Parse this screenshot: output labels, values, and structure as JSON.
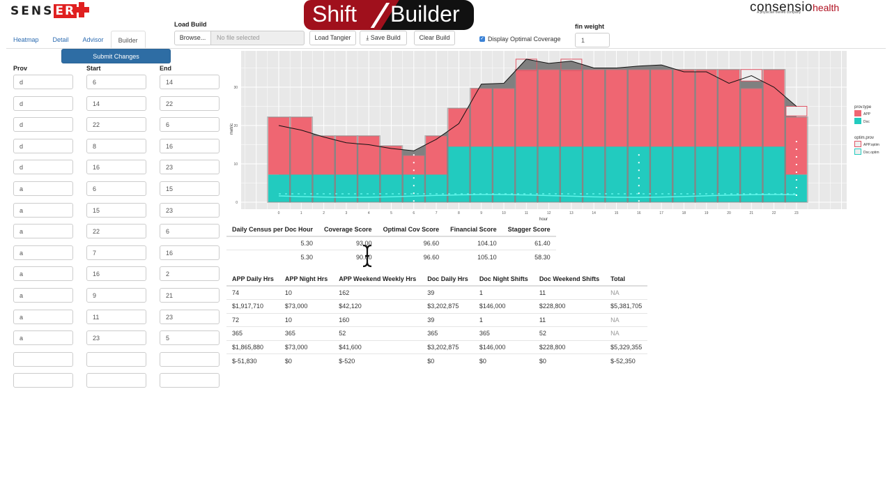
{
  "header": {
    "brand_left": {
      "prefix": "SENS",
      "highlight": "ER"
    },
    "banner": {
      "word1": "Shift",
      "word2": "Builder"
    },
    "brand_right": {
      "name": "consensio",
      "suffix": "health",
      "tagline": "A physician owned company"
    }
  },
  "tabs": [
    {
      "label": "Heatmap",
      "active": false
    },
    {
      "label": "Detail",
      "active": false
    },
    {
      "label": "Advisor",
      "active": false
    },
    {
      "label": "Builder",
      "active": true
    }
  ],
  "submit_label": "Submit Changes",
  "load_build": {
    "label": "Load Build",
    "browse_label": "Browse...",
    "file_placeholder": "No file selected",
    "load_tangier_label": "Load Tangier",
    "save_build_label": "Save Build",
    "clear_build_label": "Clear Build"
  },
  "display_optimal": {
    "label": "Display Optimal Coverage",
    "checked": true
  },
  "fin_weight": {
    "label": "fin weight",
    "value": "1"
  },
  "shifts": {
    "headers": {
      "prov": "Prov",
      "start": "Start",
      "end": "End"
    },
    "rows": [
      {
        "prov": "d",
        "start": "6",
        "end": "14"
      },
      {
        "prov": "d",
        "start": "14",
        "end": "22"
      },
      {
        "prov": "d",
        "start": "22",
        "end": "6"
      },
      {
        "prov": "d",
        "start": "8",
        "end": "16"
      },
      {
        "prov": "d",
        "start": "16",
        "end": "23"
      },
      {
        "prov": "a",
        "start": "6",
        "end": "15"
      },
      {
        "prov": "a",
        "start": "15",
        "end": "23"
      },
      {
        "prov": "a",
        "start": "22",
        "end": "6"
      },
      {
        "prov": "a",
        "start": "7",
        "end": "16"
      },
      {
        "prov": "a",
        "start": "16",
        "end": "2"
      },
      {
        "prov": "a",
        "start": "9",
        "end": "21"
      },
      {
        "prov": "a",
        "start": "11",
        "end": "23"
      },
      {
        "prov": "a",
        "start": "23",
        "end": "5"
      },
      {
        "prov": "",
        "start": "",
        "end": ""
      },
      {
        "prov": "",
        "start": "",
        "end": ""
      }
    ]
  },
  "scores": {
    "headers": [
      "Daily Census per Doc Hour",
      "Coverage Score",
      "Optimal Cov Score",
      "Financial Score",
      "Stagger Score"
    ],
    "rows": [
      [
        "5.30",
        "93.00",
        "96.60",
        "104.10",
        "61.40"
      ],
      [
        "5.30",
        "90.60",
        "96.60",
        "105.10",
        "58.30"
      ]
    ]
  },
  "costs": {
    "headers": [
      "APP Daily Hrs",
      "APP Night Hrs",
      "APP Weekend Weekly Hrs",
      "Doc Daily Hrs",
      "Doc Night Shifts",
      "Doc Weekend Shifts",
      "Total"
    ],
    "rows": [
      [
        "74",
        "10",
        "162",
        "39",
        "1",
        "11",
        "NA"
      ],
      [
        "$1,917,710",
        "$73,000",
        "$42,120",
        "$3,202,875",
        "$146,000",
        "$228,800",
        "$5,381,705"
      ],
      [
        "72",
        "10",
        "160",
        "39",
        "1",
        "11",
        "NA"
      ],
      [
        "365",
        "365",
        "52",
        "365",
        "365",
        "52",
        "NA"
      ],
      [
        "$1,865,880",
        "$73,000",
        "$41,600",
        "$3,202,875",
        "$146,000",
        "$228,800",
        "$5,329,355"
      ],
      [
        "$-51,830",
        "$0",
        "$-520",
        "$0",
        "$0",
        "$0",
        "$-52,350"
      ]
    ]
  },
  "colors": {
    "app": "#ef6672",
    "app_dark": "#e8515e",
    "doc": "#22cbbf",
    "primary": "#2e6da4",
    "panel_bg": "#e8e8e8"
  },
  "chart_data": {
    "type": "bar",
    "xlabel": "hour",
    "ylabel": "metric",
    "ylim": [
      0,
      39
    ],
    "yticks": [
      0,
      10,
      20,
      30
    ],
    "categories": [
      0,
      1,
      2,
      3,
      4,
      5,
      6,
      7,
      8,
      9,
      10,
      11,
      12,
      13,
      14,
      15,
      16,
      17,
      18,
      19,
      20,
      21,
      22,
      23
    ],
    "series": [
      {
        "name": "Doc",
        "values": [
          7.2,
          7.2,
          7.2,
          7.2,
          7.2,
          7.2,
          7.2,
          7.2,
          14.5,
          14.5,
          14.5,
          14.5,
          14.5,
          14.5,
          14.5,
          14.5,
          14.5,
          14.5,
          14.5,
          14.5,
          14.5,
          14.5,
          14.5,
          7.2
        ]
      },
      {
        "name": "APP",
        "values": [
          15,
          15,
          10.1,
          10.1,
          10.1,
          7.5,
          5,
          10.1,
          10,
          15.2,
          15.2,
          20.1,
          20.1,
          20.1,
          20.1,
          20.1,
          20.1,
          20.1,
          20.1,
          20.1,
          20.1,
          15.2,
          20.1,
          15
        ]
      },
      {
        "name": "metric_line",
        "values": [
          20,
          18.8,
          17,
          15.5,
          15,
          14,
          13.4,
          16.4,
          20.5,
          30.8,
          31,
          37.3,
          36.2,
          36.8,
          35,
          35,
          35.5,
          35.8,
          34,
          34,
          31,
          33,
          30,
          25
        ]
      }
    ],
    "legend": {
      "prov.type": [
        "APP",
        "Doc"
      ],
      "optim.prov": [
        "APP.optim",
        "Doc.optim"
      ]
    },
    "legend_position": "right",
    "grid": true
  }
}
